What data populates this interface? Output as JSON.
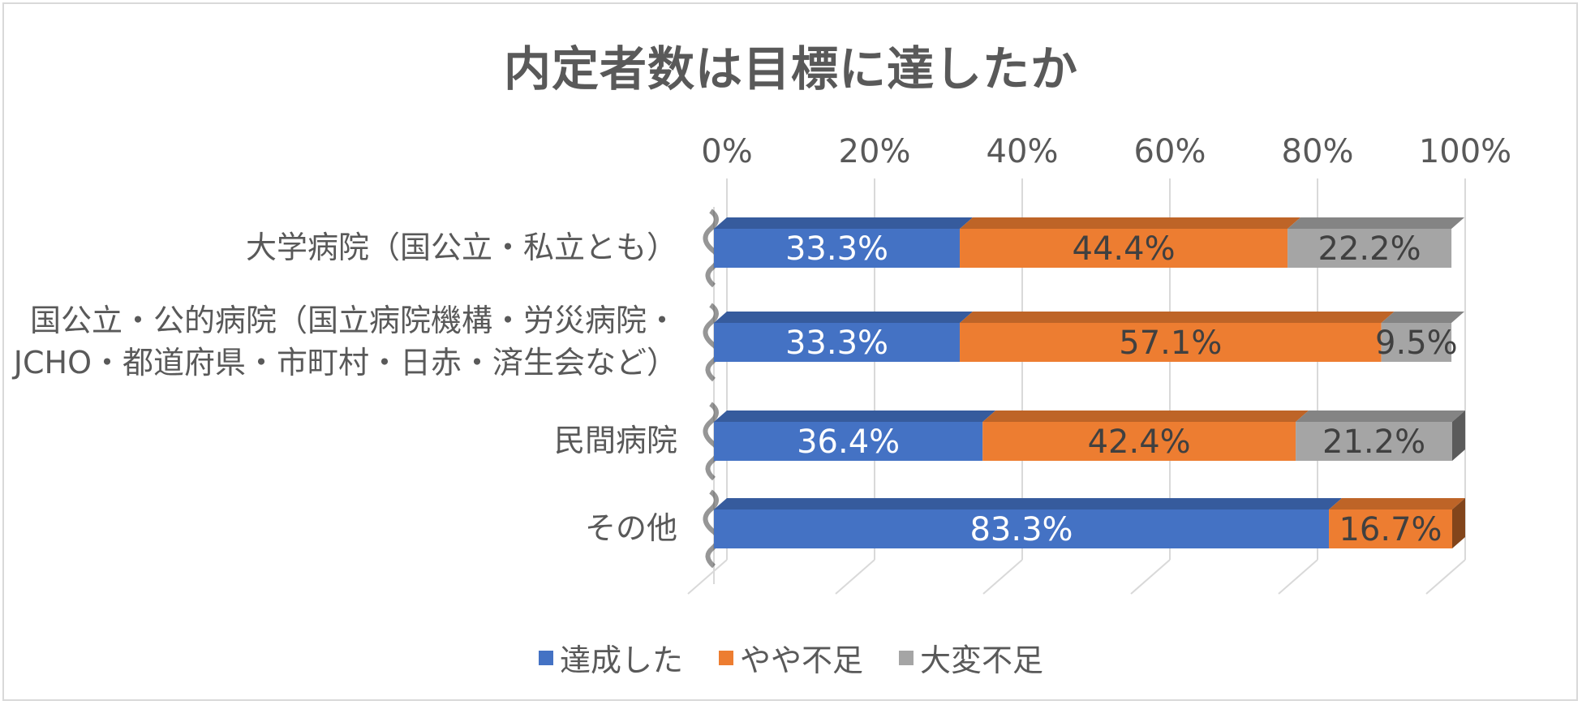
{
  "chart_data": {
    "type": "bar",
    "orientation": "horizontal-stacked-100",
    "title": "内定者数は目標に達したか",
    "categories": [
      [
        "大学病院（国公立・私立とも）"
      ],
      [
        "国公立・公的病院（国立病院機構・労災病院・",
        "JCHO・都道府県・市町村・日赤・済生会など）"
      ],
      [
        "民間病院"
      ],
      [
        "その他"
      ]
    ],
    "series": [
      {
        "name": "達成した",
        "color": "#4472c4",
        "label_color": "#ffffff",
        "values": [
          33.3,
          33.3,
          36.4,
          83.3
        ],
        "labels": [
          "33.3%",
          "33.3%",
          "36.4%",
          "83.3%"
        ]
      },
      {
        "name": "やや不足",
        "color": "#ed7d31",
        "label_color": "#404040",
        "values": [
          44.4,
          57.1,
          42.4,
          16.7
        ],
        "labels": [
          "44.4%",
          "57.1%",
          "42.4%",
          "16.7%"
        ]
      },
      {
        "name": "大変不足",
        "color": "#a5a5a5",
        "label_color": "#404040",
        "values": [
          22.2,
          9.5,
          21.2,
          0
        ],
        "labels": [
          "22.2%",
          "9.5%",
          "21.2%",
          ""
        ]
      }
    ],
    "x_ticks": [
      "0%",
      "20%",
      "40%",
      "60%",
      "80%",
      "100%"
    ],
    "xlim": [
      0,
      100
    ],
    "grid": true,
    "legend_position": "bottom"
  }
}
